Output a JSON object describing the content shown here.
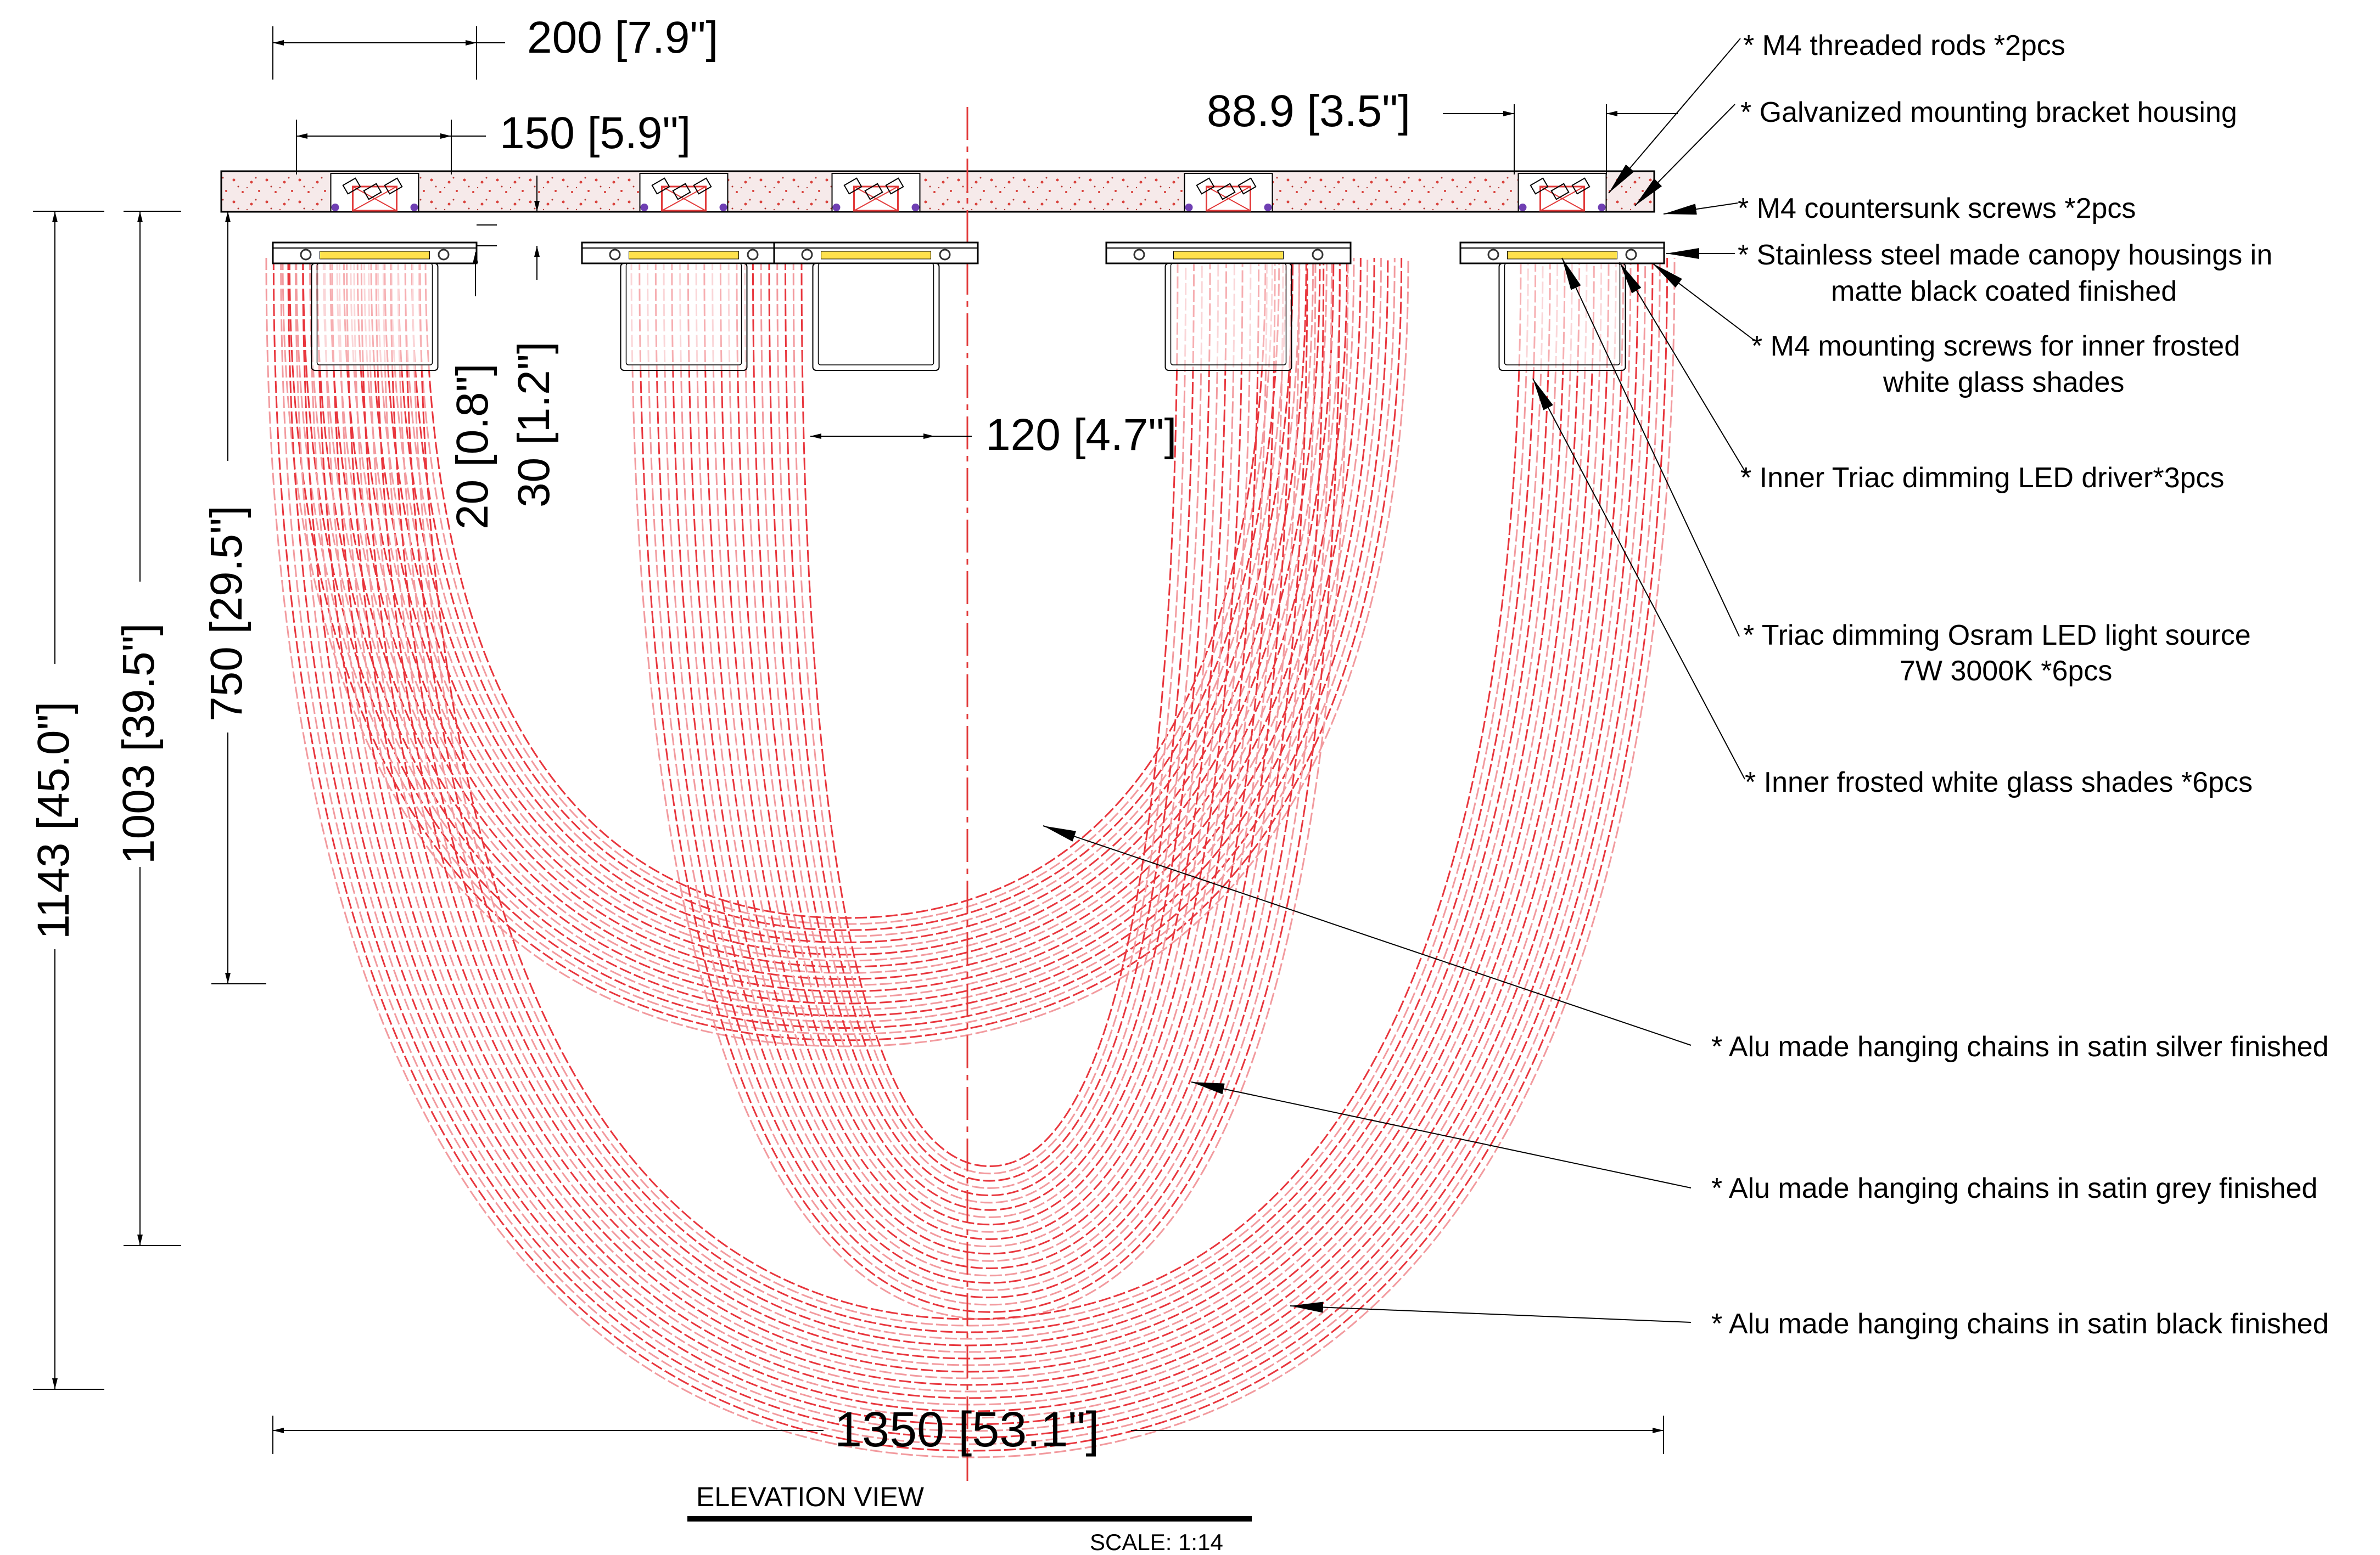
{
  "colors": {
    "chain": "#e8363d",
    "chain_light": "#f29a9e",
    "ceiling_fill": "#f6eaea",
    "ceiling_speck": "#d9423c",
    "canopy_stroke": "#000000",
    "led": "#ffe14d",
    "screw": "#6f3fb3",
    "bracket": "#e23a3a",
    "centerline": "#e23a3a"
  },
  "dimensions": {
    "d200": "200 [7.9\"]",
    "d150": "150 [5.9\"]",
    "d88_9": "88.9 [3.5\"]",
    "d20": "20 [0.8\"]",
    "d30": "30 [1.2\"]",
    "d120": "120 [4.7\"]",
    "d750": "750 [29.5\"]",
    "d1003": "1003 [39.5\"]",
    "d1143": "1143 [45.0\"]",
    "d1350": "1350 [53.1\"]"
  },
  "callouts": {
    "c1": "* M4 threaded rods *2pcs",
    "c2": "* Galvanized mounting bracket housing",
    "c3": "* M4 countersunk screws *2pcs",
    "c4a": "* Stainless steel made canopy housings in",
    "c4b": "matte black coated finished",
    "c5a": "* M4 mounting screws for inner frosted",
    "c5b": "white glass shades",
    "c6": "* Inner Triac dimming LED driver*3pcs",
    "c7a": "* Triac dimming Osram LED light source",
    "c7b": "7W 3000K *6pcs",
    "c8": "* Inner frosted white glass shades *6pcs",
    "c9": "* Alu made hanging chains in satin silver finished",
    "c10": "* Alu made hanging chains in satin grey finished",
    "c11": "* Alu made hanging chains in satin black finished"
  },
  "title": {
    "view": "ELEVATION VIEW",
    "scale": "SCALE: 1:14"
  },
  "icons": [
    "canopy-icon",
    "glass-shade-icon",
    "led-light-source-icon",
    "mounting-bracket-icon",
    "arrowhead-icon"
  ]
}
